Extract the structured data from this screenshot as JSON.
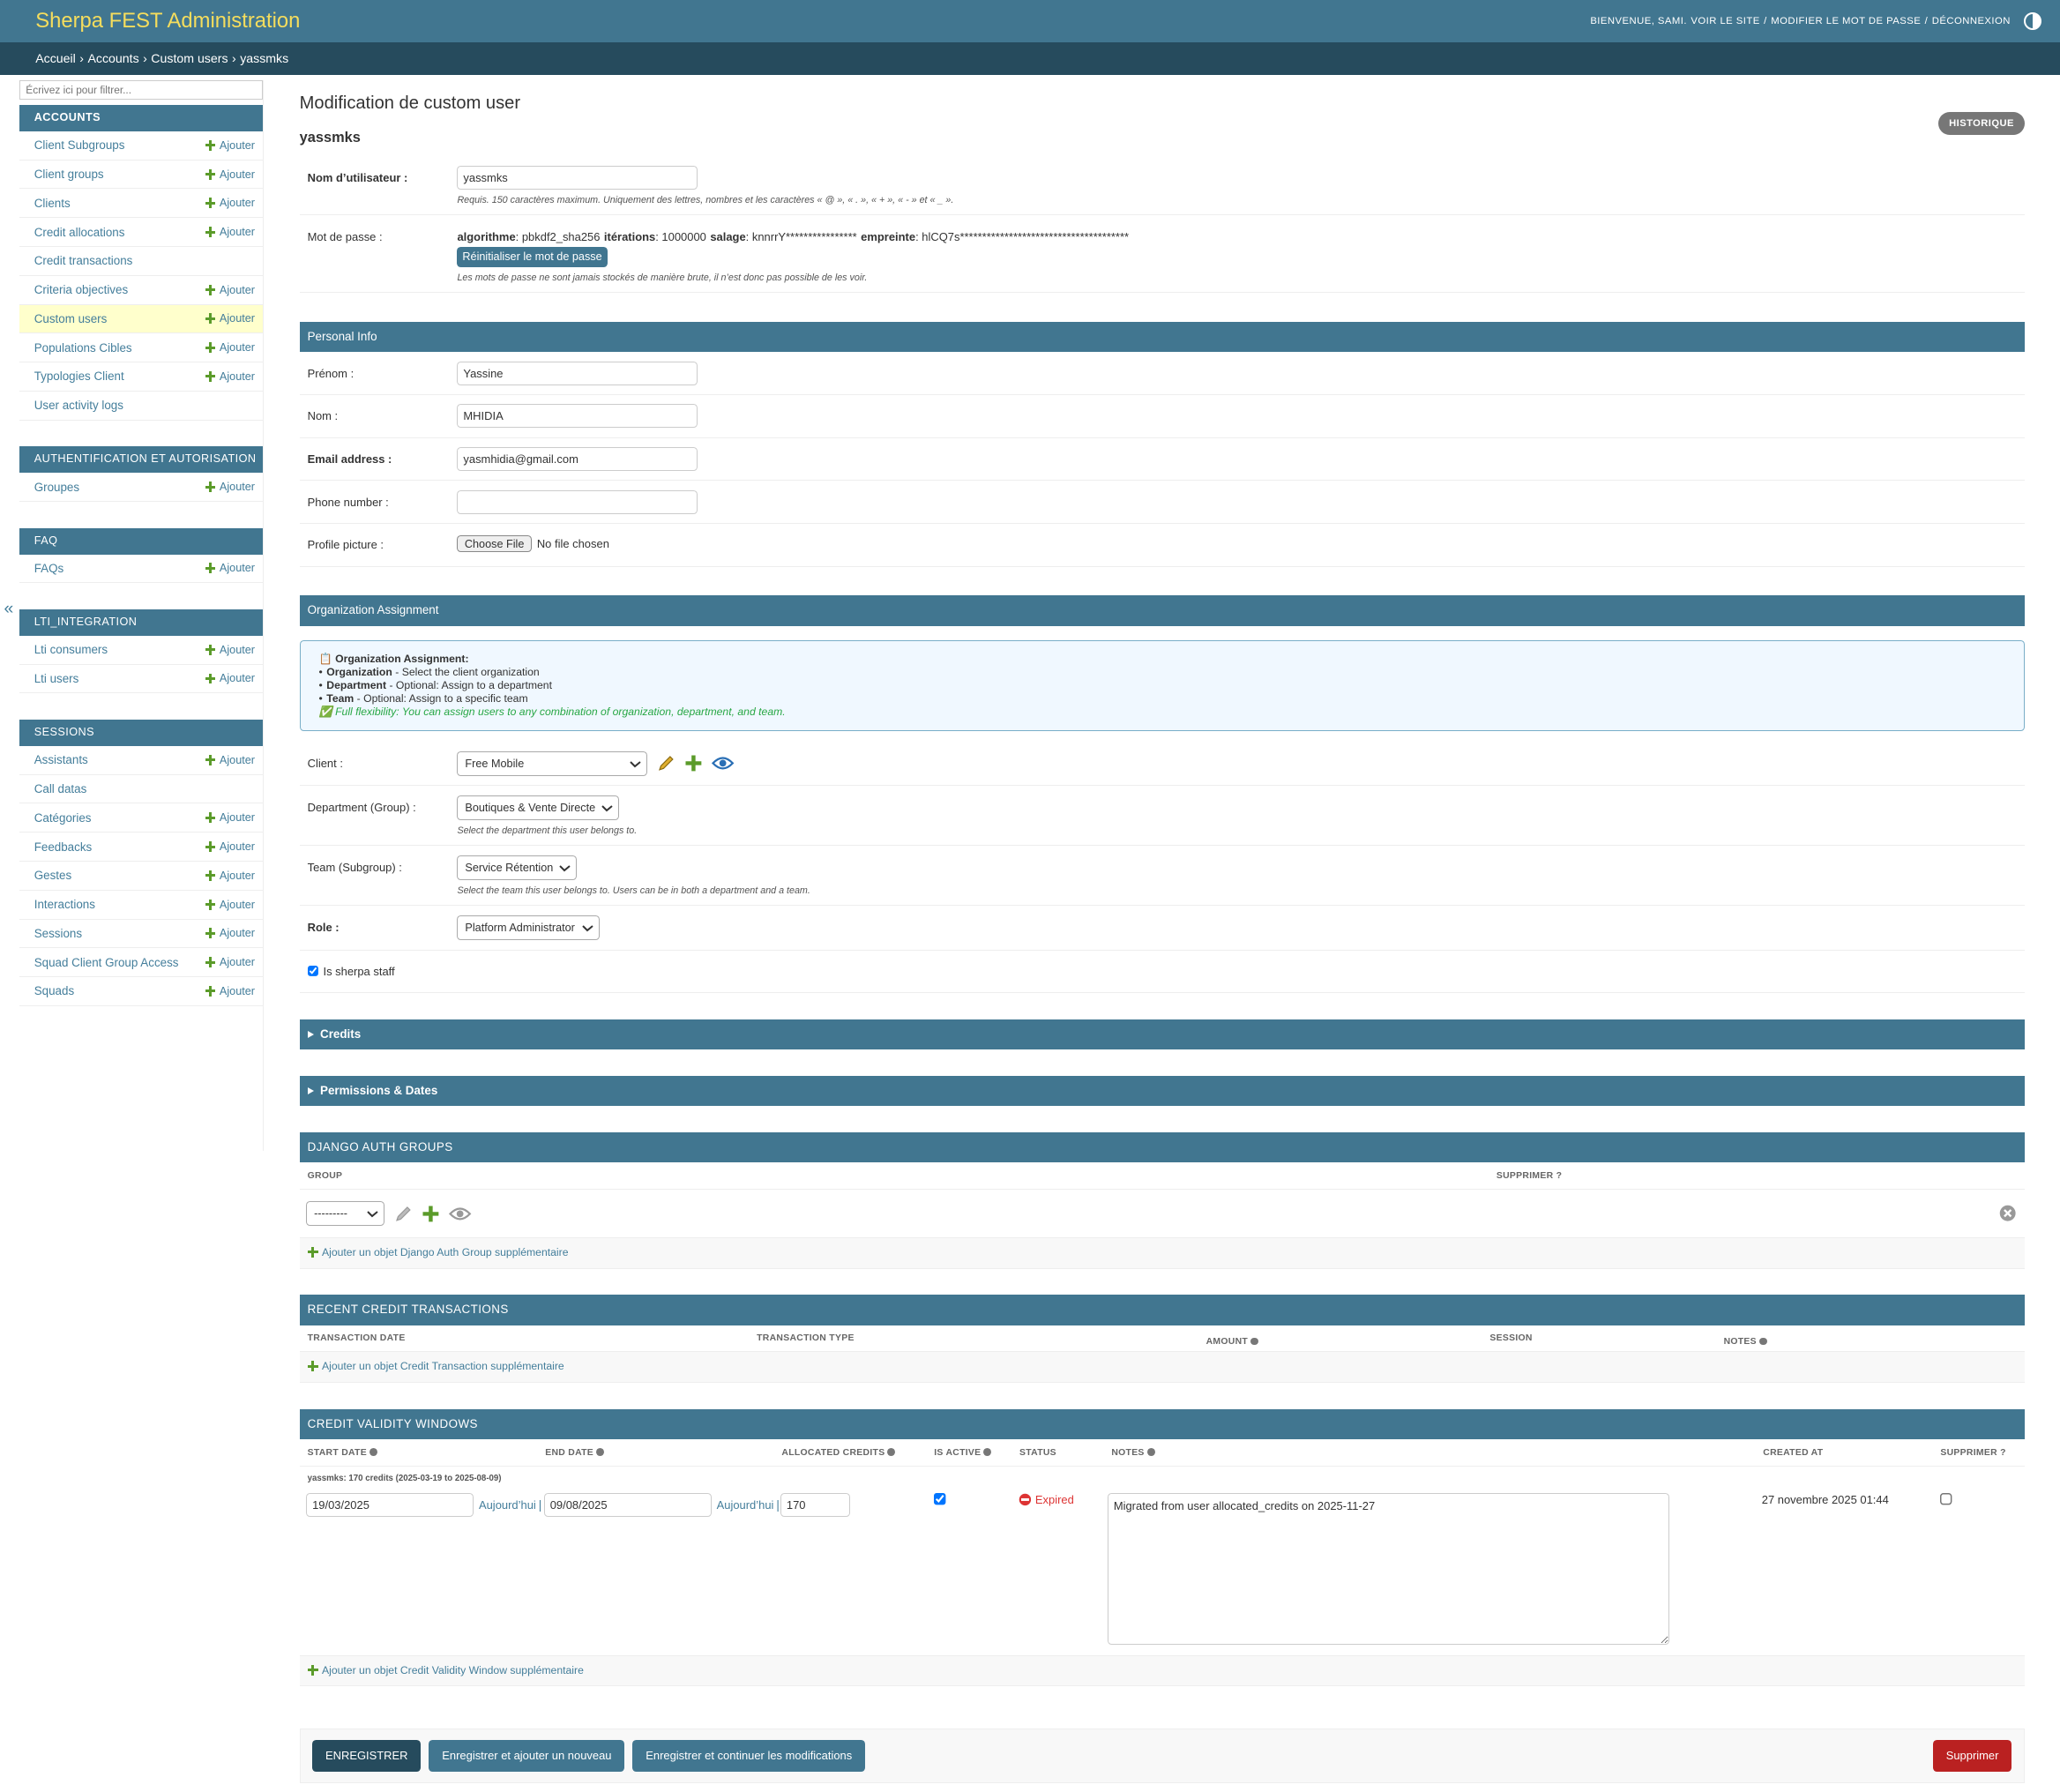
{
  "header": {
    "site_title": "Sherpa FEST Administration",
    "welcome": "BIENVENUE, SAMI.",
    "tools": [
      "VOIR LE SITE",
      "MODIFIER LE MOT DE PASSE",
      "DÉCONNEXION"
    ],
    "tool_separator": "/"
  },
  "breadcrumbs": {
    "items": [
      "Accueil",
      "Accounts",
      "Custom users",
      "yassmks"
    ],
    "separator": "›"
  },
  "sidebar": {
    "filter_placeholder": "Écrivez ici pour filtrer...",
    "add_label": "Ajouter",
    "collapse": "«",
    "apps": [
      {
        "name": "ACCOUNTS",
        "models": [
          {
            "name": "Client Subgroups",
            "add": true
          },
          {
            "name": "Client groups",
            "add": true
          },
          {
            "name": "Clients",
            "add": true
          },
          {
            "name": "Credit allocations",
            "add": true
          },
          {
            "name": "Credit transactions",
            "add": false
          },
          {
            "name": "Criteria objectives",
            "add": true
          },
          {
            "name": "Custom users",
            "add": true,
            "current": true
          },
          {
            "name": "Populations Cibles",
            "add": true
          },
          {
            "name": "Typologies Client",
            "add": true
          },
          {
            "name": "User activity logs",
            "add": false
          }
        ]
      },
      {
        "name": "AUTHENTIFICATION ET AUTORISATION",
        "models": [
          {
            "name": "Groupes",
            "add": true
          }
        ]
      },
      {
        "name": "FAQ",
        "models": [
          {
            "name": "FAQs",
            "add": true
          }
        ]
      },
      {
        "name": "LTI_INTEGRATION",
        "models": [
          {
            "name": "Lti consumers",
            "add": true
          },
          {
            "name": "Lti users",
            "add": true
          }
        ]
      },
      {
        "name": "SESSIONS",
        "models": [
          {
            "name": "Assistants",
            "add": true
          },
          {
            "name": "Call datas",
            "add": false
          },
          {
            "name": "Catégories",
            "add": true
          },
          {
            "name": "Feedbacks",
            "add": true
          },
          {
            "name": "Gestes",
            "add": true
          },
          {
            "name": "Interactions",
            "add": true
          },
          {
            "name": "Sessions",
            "add": true
          },
          {
            "name": "Squad Client Group Access",
            "add": true
          },
          {
            "name": "Squads",
            "add": true
          }
        ]
      }
    ]
  },
  "form": {
    "title": "Modification de custom user",
    "object_name": "yassmks",
    "history": "HISTORIQUE",
    "fieldsets": [
      {
        "rows": [
          {
            "label": "Nom d’utilisateur :",
            "required": true,
            "widget": "text",
            "value": "yassmks",
            "help": "Requis. 150 caractères maximum. Uniquement des lettres, nombres et les caractères « @ », « . », « + », « - » et « _ »."
          },
          {
            "label": "Mot de passe :",
            "widget": "password",
            "summary": [
              {
                "key": "algorithme",
                "value": ": pbkdf2_sha256"
              },
              {
                "key": "itérations",
                "value": ": 1000000"
              },
              {
                "key": "salage",
                "value": ": knnrrY****************"
              },
              {
                "key": "empreinte",
                "value": ": hlCQ7s**************************************"
              }
            ],
            "button": "Réinitialiser le mot de passe",
            "help": "Les mots de passe ne sont jamais stockés de manière brute, il n’est donc pas possible de les voir."
          }
        ]
      },
      {
        "name": "Personal Info",
        "rows": [
          {
            "label": "Prénom :",
            "widget": "text",
            "value": "Yassine"
          },
          {
            "label": "Nom :",
            "widget": "text",
            "value": "MHIDIA"
          },
          {
            "label": "Email address :",
            "required": true,
            "widget": "text",
            "value": "yasmhidia@gmail.com"
          },
          {
            "label": "Phone number :",
            "widget": "text"
          },
          {
            "label": "Profile picture :",
            "widget": "file",
            "button": "Choose File",
            "value": "No file chosen"
          }
        ]
      },
      {
        "name": "Organization Assignment",
        "info": {
          "title": "📋 Organization Assignment:",
          "items": [
            {
              "key": "Organization",
              "text": " - Select the client organization"
            },
            {
              "key": "Department",
              "text": " - Optional: Assign to a department"
            },
            {
              "key": "Team",
              "text": " - Optional: Assign to a specific team"
            }
          ],
          "note": "✅ Full flexibility: You can assign users to any combination of organization, department, and team."
        },
        "rows": [
          {
            "label": "Client :",
            "widget": "select",
            "value": "Free Mobile",
            "related_icons": true
          },
          {
            "label": "Department (Group) :",
            "widget": "select",
            "value": "Boutiques & Vente Directe",
            "help": "Select the department this user belongs to."
          },
          {
            "label": "Team (Subgroup) :",
            "widget": "select",
            "value": "Service Rétention",
            "help": "Select the team this user belongs to. Users can be in both a department and a team."
          },
          {
            "label": "Role :",
            "required": true,
            "widget": "select",
            "value": "Platform Administrator"
          },
          {
            "label": "Is sherpa staff",
            "widget": "checkbox",
            "checked": true
          }
        ]
      },
      {
        "name": "Credits",
        "collapsed": true
      },
      {
        "name": "Permissions & Dates",
        "collapsed": true
      }
    ],
    "inlines": [
      {
        "title": "DJANGO AUTH GROUPS",
        "columns": [
          {
            "label": "GROUP"
          },
          {
            "label": "SUPPRIMER ?"
          }
        ],
        "select": "---------",
        "add": "Ajouter un objet Django Auth Group supplémentaire"
      },
      {
        "title": "RECENT CREDIT TRANSACTIONS",
        "columns": [
          {
            "label": "TRANSACTION DATE"
          },
          {
            "label": "TRANSACTION TYPE"
          },
          {
            "label": "AMOUNT",
            "help": true
          },
          {
            "label": "SESSION"
          },
          {
            "label": "NOTES",
            "help": true
          }
        ],
        "add": "Ajouter un objet Credit Transaction supplémentaire"
      },
      {
        "title": "CREDIT VALIDITY WINDOWS",
        "columns": [
          {
            "label": "START DATE",
            "help": true
          },
          {
            "label": "END DATE",
            "help": true
          },
          {
            "label": "ALLOCATED CREDITS",
            "help": true
          },
          {
            "label": "IS ACTIVE",
            "help": true
          },
          {
            "label": "STATUS"
          },
          {
            "label": "NOTES",
            "help": true
          },
          {
            "label": "CREATED AT"
          },
          {
            "label": "SUPPRIMER ?"
          }
        ],
        "record": {
          "label": "yassmks: 170 credits (2025-03-19 to 2025-08-09)",
          "start_date": "19/03/2025",
          "end_date": "09/08/2025",
          "today": "Aujourd’hui",
          "date_separator": "|",
          "allocated_credits": "170",
          "is_active": true,
          "status": "Expired",
          "notes": "Migrated from user allocated_credits on 2025-11-27",
          "created_at": "27 novembre 2025 01:44"
        },
        "add": "Ajouter un objet Credit Validity Window supplémentaire"
      }
    ],
    "submit": {
      "save": "ENREGISTRER",
      "save_add": "Enregistrer et ajouter un nouveau",
      "save_continue": "Enregistrer et continuer les modifications",
      "delete": "Supprimer"
    }
  }
}
